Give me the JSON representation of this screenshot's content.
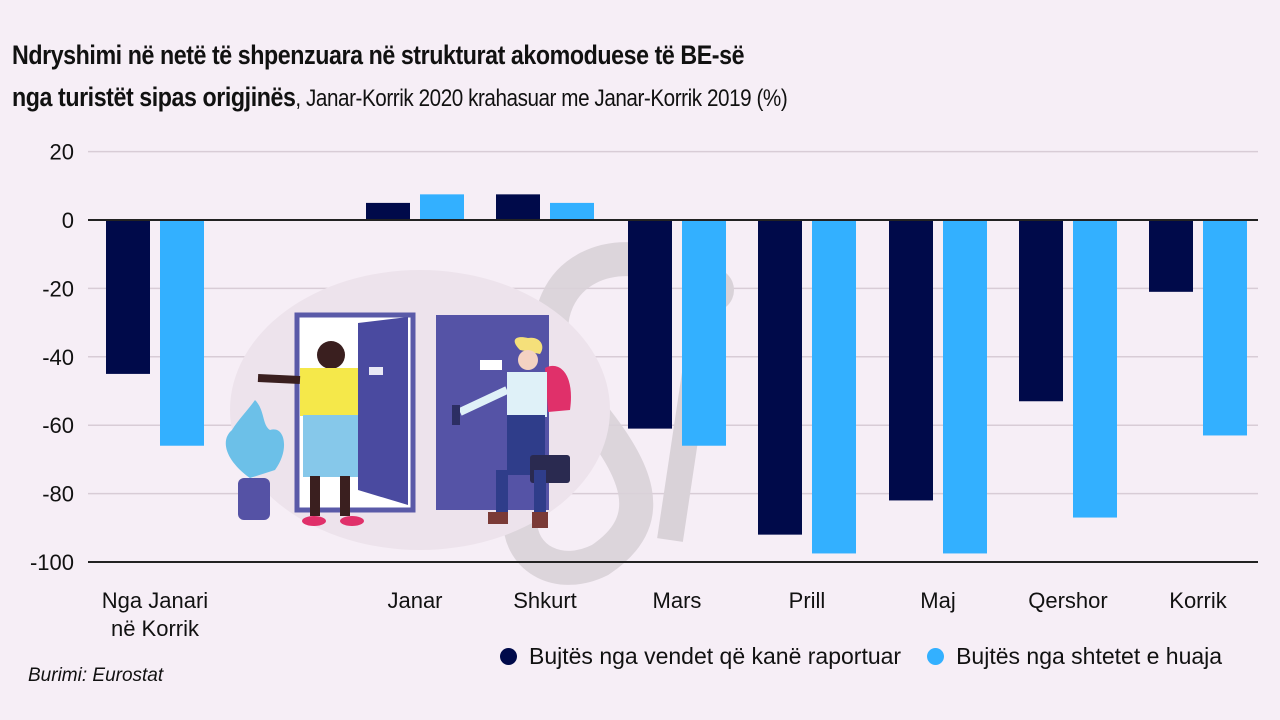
{
  "title": {
    "line1": "Ndryshimi në netë të shpenzuara në strukturat akomoduese të BE-së",
    "line2_bold": "nga turistët sipas origjinës",
    "line2_sub": ", Janar-Korrik 2020 krahasuar me Janar-Korrik 2019 (%)"
  },
  "source": "Burimi: Eurostat",
  "colors": {
    "series1": "#000a4a",
    "series2": "#33b0ff",
    "grid": "#d8ccd6",
    "axis": "#222222"
  },
  "illustration": "hotel-doors-tourists-illustration",
  "chart_data": {
    "type": "bar",
    "title": "Ndryshimi në netë të shpenzuara në strukturat akomoduese të BE-së nga turistët sipas origjinës, Janar-Korrik 2020 krahasuar me Janar-Korrik 2019 (%)",
    "xlabel": "",
    "ylabel": "",
    "ylim": [
      -100,
      20
    ],
    "yticks": [
      20,
      0,
      -20,
      -40,
      -60,
      -80,
      -100
    ],
    "grid": true,
    "legend_position": "bottom-right",
    "categories": [
      "Nga Janari\nnë Korrik",
      "",
      "Janar",
      "Shkurt",
      "Mars",
      "Prill",
      "Maj",
      "Qershor",
      "Korrik"
    ],
    "series": [
      {
        "name": "Bujtës nga vendet që kanë raportuar",
        "values": [
          -45,
          null,
          5,
          7.5,
          -61,
          -92,
          -82,
          -53,
          -21
        ]
      },
      {
        "name": "Bujtës nga shtetet e huaja",
        "values": [
          -66,
          null,
          7.5,
          5,
          -66,
          -97.5,
          -97.5,
          -87,
          -63
        ]
      }
    ]
  }
}
